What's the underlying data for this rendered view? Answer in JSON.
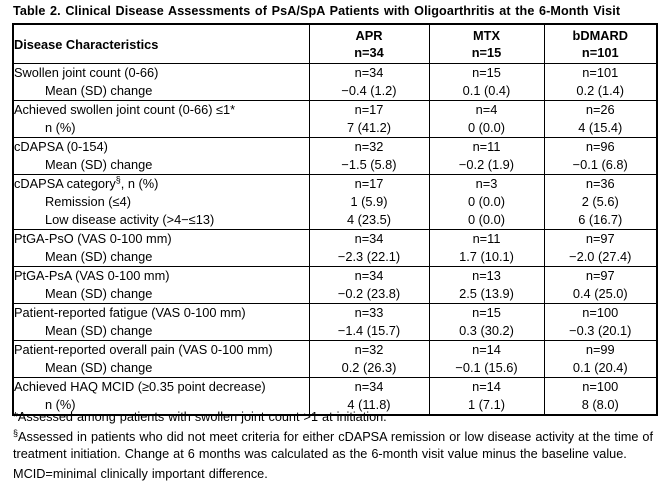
{
  "title": "Table 2. Clinical Disease Assessments of PsA/SpA Patients with Oligoarthritis at the 6-Month Visit",
  "colors": {
    "text": "#000000",
    "background": "#ffffff",
    "border": "#000000"
  },
  "table": {
    "header": {
      "label": "Disease Characteristics",
      "columns": [
        {
          "name": "APR",
          "n": "n=34"
        },
        {
          "name": "MTX",
          "n": "n=15"
        },
        {
          "name": "bDMARD",
          "n": "n=101"
        }
      ]
    },
    "groups": [
      {
        "rows": [
          {
            "label": "Swollen joint count (0-66)",
            "indent": false,
            "cells": [
              "n=34",
              "n=15",
              "n=101"
            ]
          },
          {
            "label": "Mean (SD) change",
            "indent": true,
            "cells": [
              "−0.4 (1.2)",
              "0.1 (0.4)",
              "0.2 (1.4)"
            ]
          }
        ]
      },
      {
        "rows": [
          {
            "label": "Achieved swollen joint count (0-66) ≤1*",
            "indent": false,
            "cells": [
              "n=17",
              "n=4",
              "n=26"
            ]
          },
          {
            "label": "n (%)",
            "indent": true,
            "cells": [
              "7 (41.2)",
              "0 (0.0)",
              "4 (15.4)"
            ]
          }
        ]
      },
      {
        "rows": [
          {
            "label": "cDAPSA (0-154)",
            "indent": false,
            "cells": [
              "n=32",
              "n=11",
              "n=96"
            ]
          },
          {
            "label": "Mean (SD) change",
            "indent": true,
            "cells": [
              "−1.5 (5.8)",
              "−0.2 (1.9)",
              "−0.1 (6.8)"
            ]
          }
        ]
      },
      {
        "rows": [
          {
            "label_pre": "cDAPSA category",
            "label_sup": "§",
            "label_post": ", n (%)",
            "indent": false,
            "cells": [
              "n=17",
              "n=3",
              "n=36"
            ]
          },
          {
            "label": "Remission (≤4)",
            "indent": true,
            "cells": [
              "1 (5.9)",
              "0 (0.0)",
              "2 (5.6)"
            ]
          },
          {
            "label": "Low disease activity (>4−≤13)",
            "indent": true,
            "cells": [
              "4 (23.5)",
              "0 (0.0)",
              "6 (16.7)"
            ]
          }
        ]
      },
      {
        "rows": [
          {
            "label": "PtGA-PsO (VAS 0-100 mm)",
            "indent": false,
            "cells": [
              "n=34",
              "n=11",
              "n=97"
            ]
          },
          {
            "label": "Mean (SD) change",
            "indent": true,
            "cells": [
              "−2.3 (22.1)",
              "1.7 (10.1)",
              "−2.0 (27.4)"
            ]
          }
        ]
      },
      {
        "rows": [
          {
            "label": "PtGA-PsA (VAS 0-100 mm)",
            "indent": false,
            "cells": [
              "n=34",
              "n=13",
              "n=97"
            ]
          },
          {
            "label": "Mean (SD) change",
            "indent": true,
            "cells": [
              "−0.2 (23.8)",
              "2.5 (13.9)",
              "0.4 (25.0)"
            ]
          }
        ]
      },
      {
        "rows": [
          {
            "label": "Patient-reported fatigue (VAS 0-100 mm)",
            "indent": false,
            "cells": [
              "n=33",
              "n=15",
              "n=100"
            ]
          },
          {
            "label": "Mean (SD) change",
            "indent": true,
            "cells": [
              "−1.4 (15.7)",
              "0.3 (30.2)",
              "−0.3 (20.1)"
            ]
          }
        ]
      },
      {
        "rows": [
          {
            "label": "Patient-reported overall pain (VAS 0-100 mm)",
            "indent": false,
            "cells": [
              "n=32",
              "n=14",
              "n=99"
            ]
          },
          {
            "label": "Mean (SD) change",
            "indent": true,
            "cells": [
              "0.2 (26.3)",
              "−0.1 (15.6)",
              "0.1 (20.4)"
            ]
          }
        ]
      },
      {
        "rows": [
          {
            "label": "Achieved HAQ MCID (≥0.35 point decrease)",
            "indent": false,
            "cells": [
              "n=34",
              "n=14",
              "n=100"
            ]
          },
          {
            "label": "n (%)",
            "indent": true,
            "cells": [
              "4 (11.8)",
              "1 (7.1)",
              "8 (8.0)"
            ]
          }
        ]
      }
    ]
  },
  "footnotes": [
    {
      "text": "*Assessed among patients with swollen joint count >1 at initiation."
    },
    {
      "sup": "§",
      "text": "Assessed in patients who did not meet criteria for either cDAPSA remission or low disease activity at the time of treatment initiation. Change at 6 months was calculated as the 6-month visit value minus the baseline value."
    },
    {
      "text": "MCID=minimal clinically important difference."
    }
  ]
}
